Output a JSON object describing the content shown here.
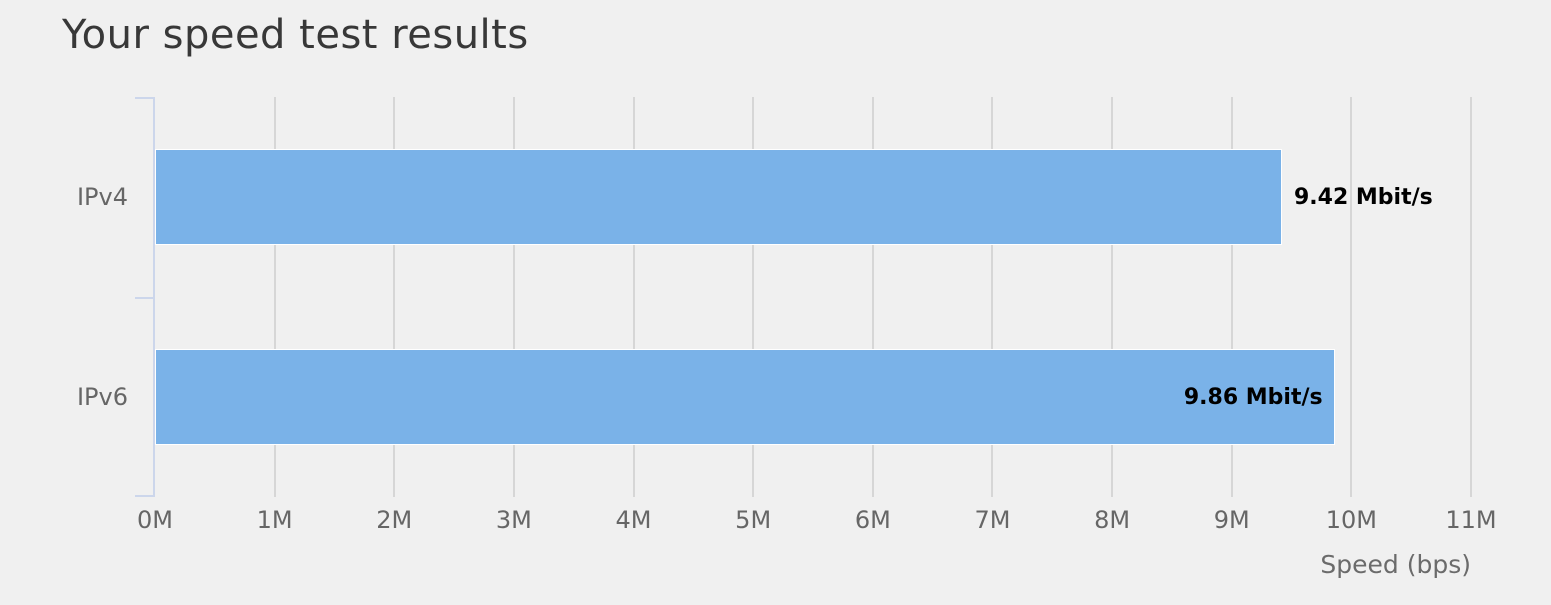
{
  "chart": {
    "title": "Your speed test results"
  },
  "chart_data": {
    "type": "bar",
    "orientation": "horizontal",
    "title": "Your speed test results",
    "categories": [
      "IPv4",
      "IPv6"
    ],
    "values": [
      9.42,
      9.86
    ],
    "unit": "Mbit/s",
    "value_labels": [
      "9.42 Mbit/s",
      "9.86 Mbit/s"
    ],
    "value_label_position": [
      "outside",
      "inside"
    ],
    "x_ticks": [
      "0M",
      "1M",
      "2M",
      "3M",
      "4M",
      "5M",
      "6M",
      "7M",
      "8M",
      "9M",
      "10M",
      "11M"
    ],
    "xlim": [
      0,
      11
    ],
    "xlabel": "Speed (bps)",
    "ylabel": "",
    "grid": true,
    "legend": false,
    "colors": {
      "background": "#f0f0f0",
      "bar_fill": "#7ab2e8",
      "bar_border": "#ffffff",
      "axis_line": "#ccd6eb",
      "gridline": "#d6d6d6",
      "title_text": "#383838",
      "axis_label_text": "#666666",
      "value_label_text": "#000000"
    }
  }
}
